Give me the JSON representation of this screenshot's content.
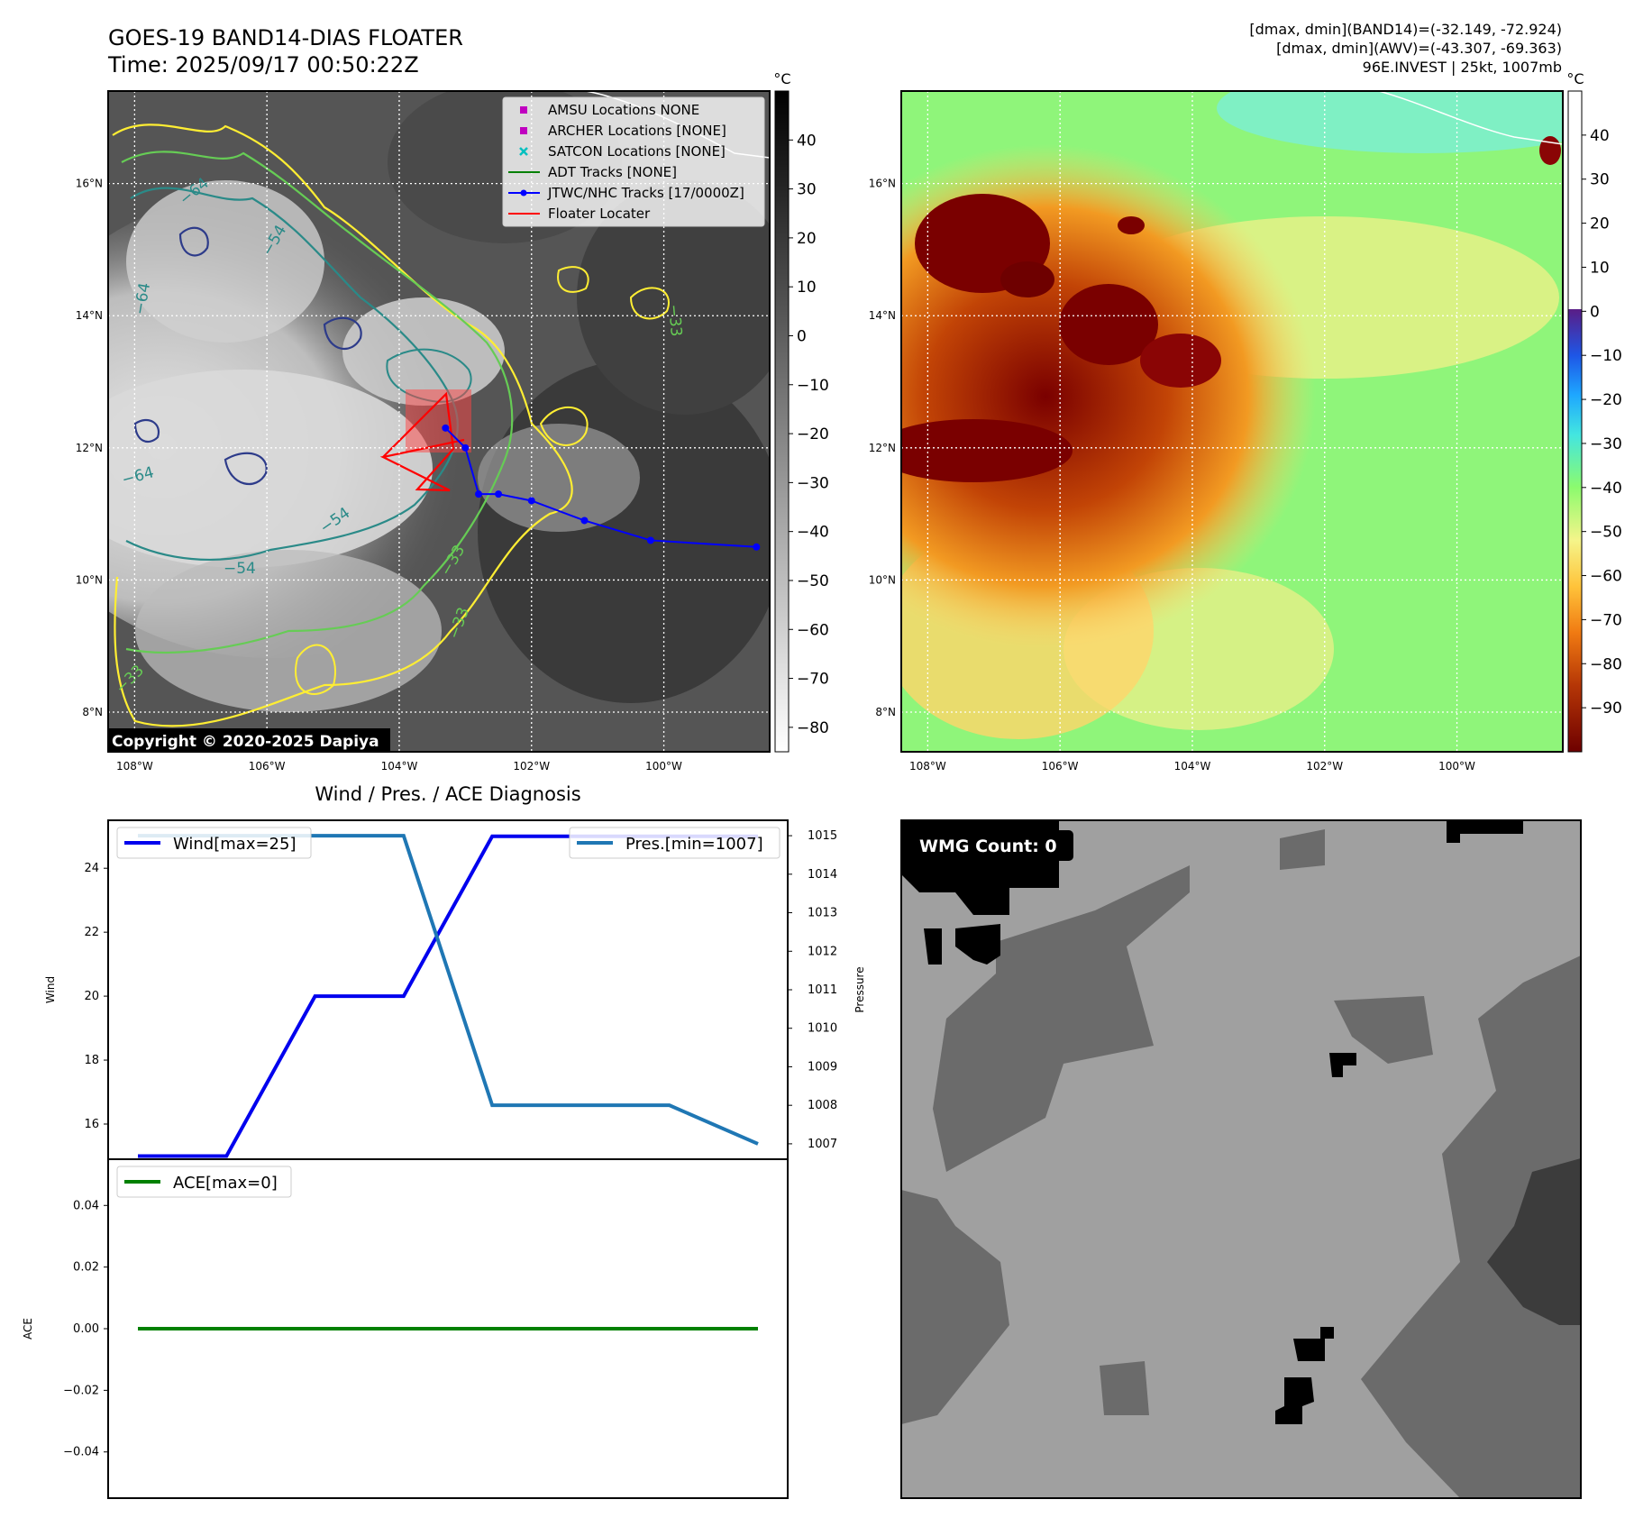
{
  "header": {
    "title_line1": "GOES-19 BAND14-DIAS FLOATER",
    "title_line2": "Time: 2025/09/17 00:50:22Z",
    "info_line1": "[dmax, dmin](BAND14)=(-32.149, -72.924)",
    "info_line2": "[dmax, dmin](AWV)=(-43.307, -69.363)",
    "info_line3": "96E.INVEST | 25kt, 1007mb"
  },
  "colors": {
    "wind": "#0000ee",
    "pressure": "#1f77b4",
    "ace": "#008000",
    "track": "#0000ff",
    "floater": "#ff0000",
    "contour_yellow": "#ffee33",
    "contour_green": "#66cc55",
    "contour_teal": "#2a8a88",
    "contour_navy": "#2d3b8a"
  },
  "map_common": {
    "lon_ticks": [
      "108°W",
      "106°W",
      "104°W",
      "102°W",
      "100°W"
    ],
    "lat_ticks": [
      "16°N",
      "14°N",
      "12°N",
      "10°N",
      "8°N"
    ]
  },
  "ir_panel": {
    "copyright": "Copyright © 2020-2025 Dapiya",
    "colorbar_unit": "°C",
    "colorbar_ticks": [
      "40",
      "30",
      "20",
      "10",
      "0",
      "−10",
      "−20",
      "−30",
      "−40",
      "−50",
      "−60",
      "−70",
      "−80"
    ],
    "contour_labels": [
      "−64",
      "−64",
      "−64",
      "−54",
      "−54",
      "−54",
      "−33",
      "−33",
      "−33",
      "−33"
    ],
    "legend": [
      {
        "label": "AMSU Locations NONE",
        "marker": "square",
        "color": "#c000c0"
      },
      {
        "label": "ARCHER Locations [NONE]",
        "marker": "square",
        "color": "#c000c0"
      },
      {
        "label": "SATCON Locations [NONE]",
        "marker": "x",
        "color": "#00bfbf"
      },
      {
        "label": "ADT Tracks [NONE]",
        "marker": "line",
        "color": "#008000"
      },
      {
        "label": "JTWC/NHC Tracks [17/0000Z]",
        "marker": "line-dot",
        "color": "#0000ff"
      },
      {
        "label": "Floater Locater",
        "marker": "line",
        "color": "#ff0000"
      }
    ],
    "track_points": [
      {
        "lon": -103.3,
        "lat": 12.3
      },
      {
        "lon": -103.0,
        "lat": 12.0
      },
      {
        "lon": -102.8,
        "lat": 11.3
      },
      {
        "lon": -102.5,
        "lat": 11.3
      },
      {
        "lon": -102.0,
        "lat": 11.2
      },
      {
        "lon": -101.2,
        "lat": 10.9
      },
      {
        "lon": -100.2,
        "lat": 10.6
      },
      {
        "lon": -98.6,
        "lat": 10.5
      }
    ]
  },
  "awv_panel": {
    "colorbar_unit": "°C",
    "colorbar_ticks": [
      "40",
      "30",
      "20",
      "10",
      "0",
      "−10",
      "−20",
      "−30",
      "−40",
      "−50",
      "−60",
      "−70",
      "−80",
      "−90"
    ]
  },
  "wmg_panel": {
    "count_label": "WMG Count: 0"
  },
  "chart_data": [
    {
      "type": "line",
      "title": "Wind / Pres. / ACE Diagnosis",
      "ylabel": "Wind",
      "ylabel_right": "Pressure",
      "ylim": [
        14.9,
        25.5
      ],
      "ylim_right": [
        1006.6,
        1015.4
      ],
      "yticks": [
        16,
        18,
        20,
        22,
        24
      ],
      "yticks_right": [
        1007,
        1008,
        1009,
        1010,
        1011,
        1012,
        1013,
        1014,
        1015
      ],
      "series": [
        {
          "name": "Wind[max=25]",
          "axis": "left",
          "values": [
            15,
            15,
            20,
            20,
            25,
            25,
            25,
            25
          ]
        },
        {
          "name": "Pres.[min=1007]",
          "axis": "right",
          "values": [
            1015,
            1015,
            1015,
            1015,
            1008,
            1008,
            1008,
            1007
          ]
        }
      ]
    },
    {
      "type": "line",
      "ylabel": "ACE",
      "ylim": [
        -0.055,
        0.055
      ],
      "yticks": [
        0.04,
        0.02,
        0.0,
        -0.02,
        -0.04
      ],
      "ytick_labels": [
        "0.04",
        "0.02",
        "0.00",
        "−0.02",
        "−0.04"
      ],
      "series": [
        {
          "name": "ACE[max=0]",
          "values": [
            0,
            0,
            0,
            0,
            0,
            0,
            0,
            0
          ]
        }
      ]
    }
  ]
}
